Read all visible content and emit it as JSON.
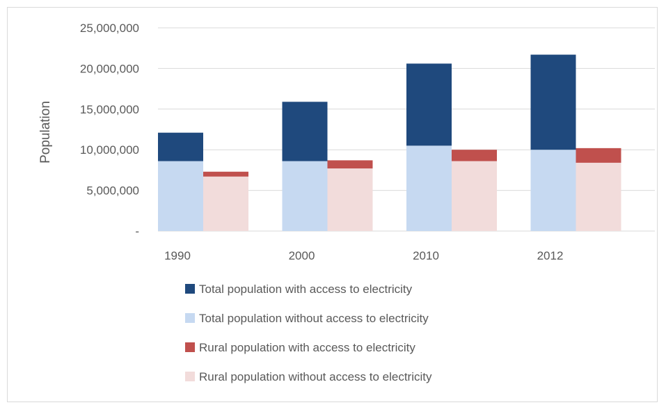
{
  "chart_data": {
    "type": "bar",
    "title": "",
    "xlabel": "",
    "ylabel": "Population",
    "ylim": [
      0,
      25000000
    ],
    "yticks": [
      {
        "value": 0,
        "label": "-"
      },
      {
        "value": 5000000,
        "label": "5,000,000"
      },
      {
        "value": 10000000,
        "label": "10,000,000"
      },
      {
        "value": 15000000,
        "label": "15,000,000"
      },
      {
        "value": 20000000,
        "label": "20,000,000"
      },
      {
        "value": 25000000,
        "label": "25,000,000"
      }
    ],
    "categories": [
      "1990",
      "2000",
      "2010",
      "2012"
    ],
    "grid": true,
    "legend_position": "bottom",
    "stacks": [
      {
        "group": "Total",
        "segments": [
          {
            "name": "Total population without access to electricity",
            "color": "#c6d9f1",
            "values": [
              8600000,
              8600000,
              10500000,
              10000000
            ]
          },
          {
            "name": "Total population with access to electricity",
            "color": "#1f497d",
            "values": [
              3500000,
              7300000,
              10100000,
              11700000
            ]
          }
        ]
      },
      {
        "group": "Rural",
        "segments": [
          {
            "name": "Rural population without access to electricity",
            "color": "#f2dcdb",
            "values": [
              6700000,
              7700000,
              8600000,
              8400000
            ]
          },
          {
            "name": "Rural population with access to electricity",
            "color": "#c0504d",
            "values": [
              600000,
              1000000,
              1400000,
              1800000
            ]
          }
        ]
      }
    ],
    "legend": [
      {
        "label": "Total population with access to electricity",
        "color": "#1f497d"
      },
      {
        "label": "Total population without access to electricity",
        "color": "#c6d9f1"
      },
      {
        "label": "Rural population with access to electricity",
        "color": "#c0504d"
      },
      {
        "label": "Rural population without access to electricity",
        "color": "#f2dcdb"
      }
    ]
  }
}
